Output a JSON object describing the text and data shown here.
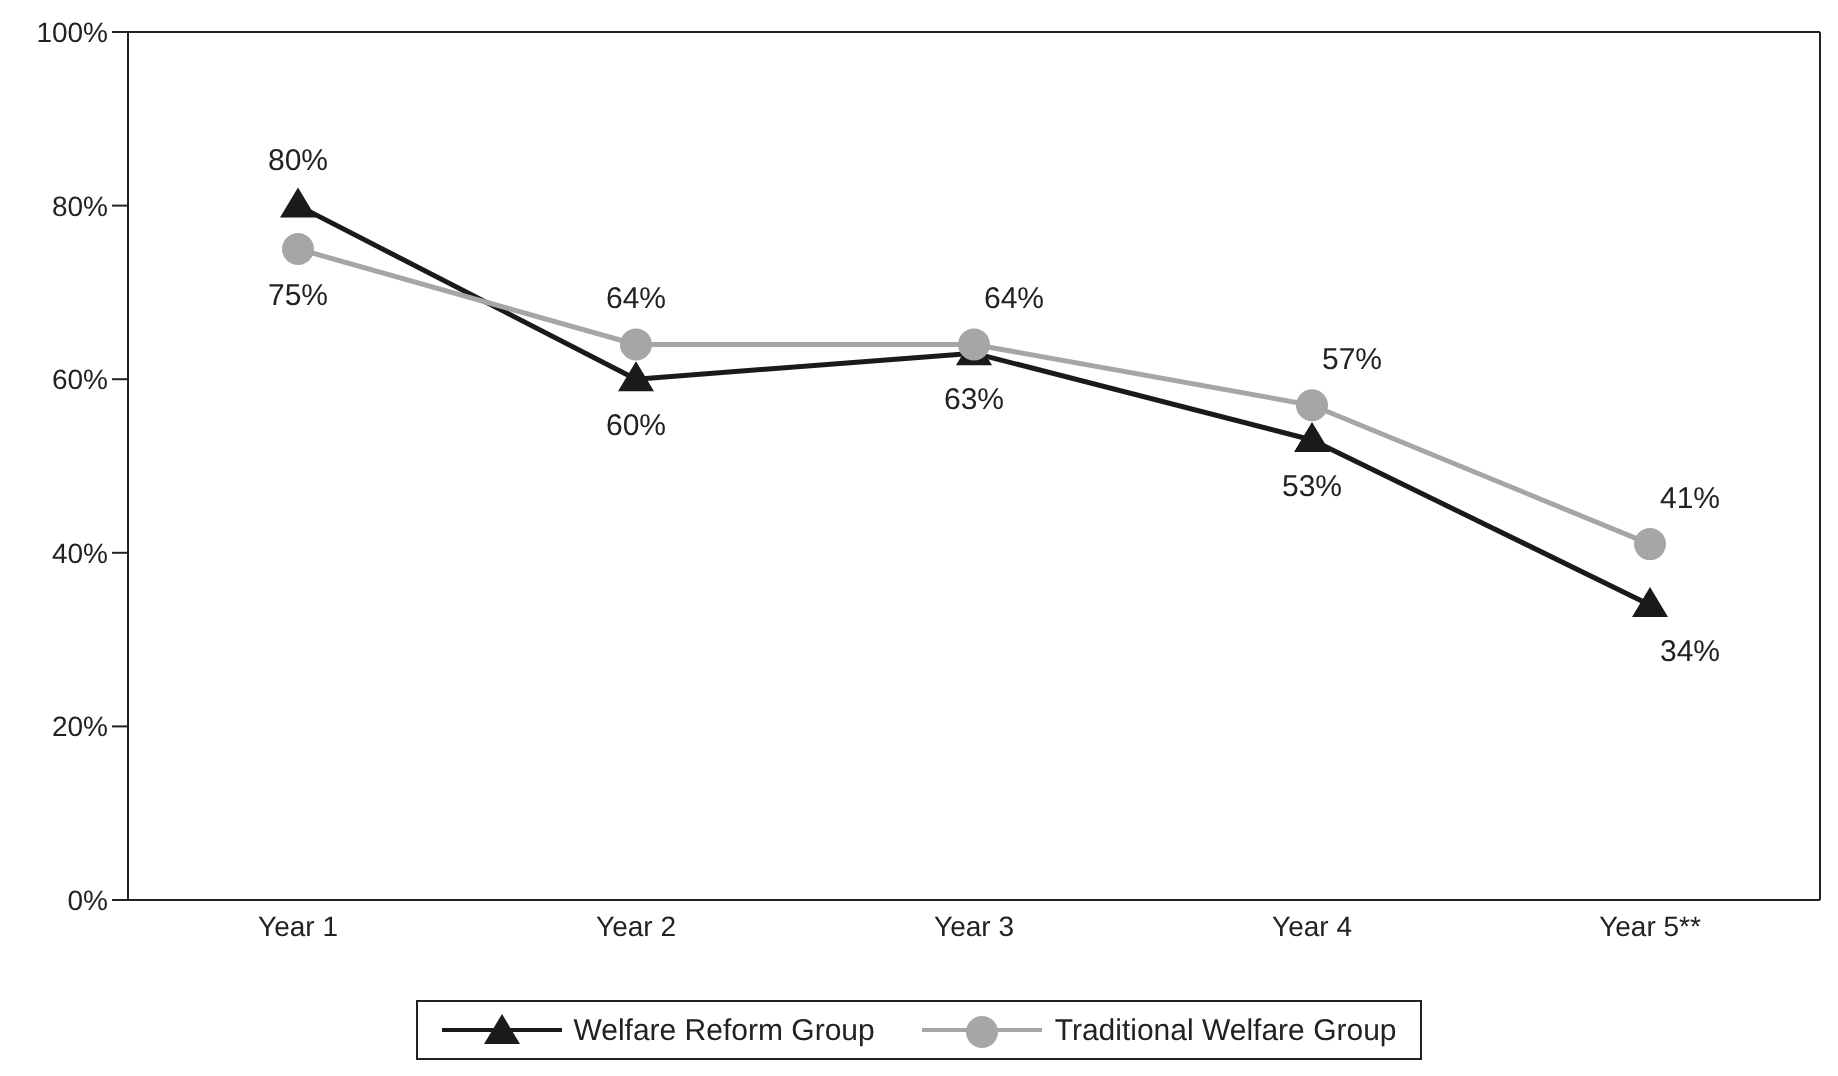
{
  "chart_data": {
    "type": "line",
    "categories": [
      "Year 1",
      "Year 2",
      "Year 3",
      "Year 4",
      "Year 5**"
    ],
    "series": [
      {
        "name": "Welfare Reform Group",
        "color": "#1a1a1a",
        "marker": "triangle",
        "values": [
          80,
          60,
          63,
          53,
          34
        ],
        "value_labels": [
          "80%",
          "60%",
          "63%",
          "53%",
          "34%"
        ]
      },
      {
        "name": "Traditional Welfare Group",
        "color": "#a6a6a6",
        "marker": "circle",
        "values": [
          75,
          64,
          64,
          57,
          41
        ],
        "value_labels": [
          "75%",
          "64%",
          "64%",
          "57%",
          "41%"
        ]
      }
    ],
    "ylim": [
      0,
      100
    ],
    "yticks": [
      {
        "value": 0,
        "label": "0%"
      },
      {
        "value": 20,
        "label": "20%"
      },
      {
        "value": 40,
        "label": "40%"
      },
      {
        "value": 60,
        "label": "60%"
      },
      {
        "value": 80,
        "label": "80%"
      },
      {
        "value": 100,
        "label": "100%"
      }
    ],
    "grid": false,
    "legend": "bottom",
    "line_style": "solid"
  }
}
